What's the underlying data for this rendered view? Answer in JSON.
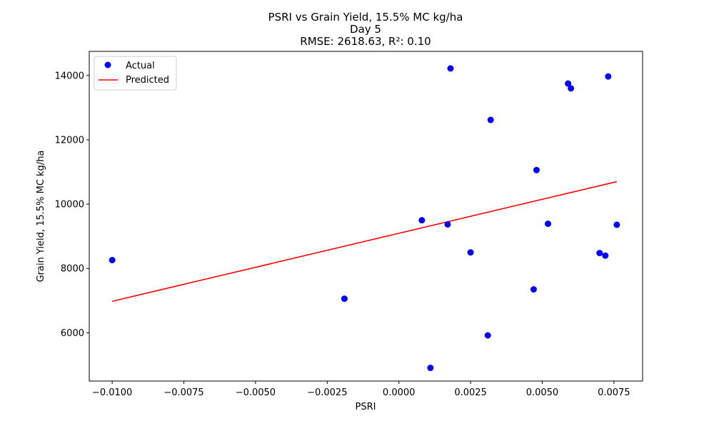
{
  "chart_data": {
    "type": "scatter",
    "title_lines": [
      "PSRI vs Grain Yield, 15.5% MC kg/ha",
      "Day 5",
      "RMSE: 2618.63, R²: 0.10"
    ],
    "xlabel": "PSRI",
    "ylabel": "Grain Yield, 15.5% MC kg/ha",
    "xlim": [
      -0.0108,
      0.0085
    ],
    "ylim": [
      4500,
      14750
    ],
    "xticks": [
      -0.01,
      -0.0075,
      -0.005,
      -0.0025,
      0.0,
      0.0025,
      0.005,
      0.0075
    ],
    "xtick_labels": [
      "−0.0100",
      "−0.0075",
      "−0.0050",
      "−0.0025",
      "0.0000",
      "0.0025",
      "0.0050",
      "0.0075"
    ],
    "yticks": [
      6000,
      8000,
      10000,
      12000,
      14000
    ],
    "ytick_labels": [
      "6000",
      "8000",
      "10000",
      "12000",
      "14000"
    ],
    "grid": false,
    "legend_position": "top-left",
    "series": [
      {
        "name": "Actual",
        "kind": "scatter",
        "color": "#0000ff",
        "points": [
          {
            "x": -0.01,
            "y": 8260
          },
          {
            "x": -0.0019,
            "y": 7060
          },
          {
            "x": 0.0008,
            "y": 9500
          },
          {
            "x": 0.0011,
            "y": 4910
          },
          {
            "x": 0.0017,
            "y": 9370
          },
          {
            "x": 0.0018,
            "y": 14220
          },
          {
            "x": 0.0025,
            "y": 8500
          },
          {
            "x": 0.0031,
            "y": 5920
          },
          {
            "x": 0.0032,
            "y": 12620
          },
          {
            "x": 0.0047,
            "y": 7350
          },
          {
            "x": 0.0048,
            "y": 11060
          },
          {
            "x": 0.0052,
            "y": 9390
          },
          {
            "x": 0.0059,
            "y": 13750
          },
          {
            "x": 0.006,
            "y": 13600
          },
          {
            "x": 0.007,
            "y": 8480
          },
          {
            "x": 0.0072,
            "y": 8400
          },
          {
            "x": 0.0073,
            "y": 13970
          },
          {
            "x": 0.0076,
            "y": 9360
          }
        ]
      },
      {
        "name": "Predicted",
        "kind": "line",
        "color": "#ff0000",
        "points": [
          {
            "x": -0.01,
            "y": 6980
          },
          {
            "x": 0.0076,
            "y": 10700
          }
        ]
      }
    ]
  }
}
